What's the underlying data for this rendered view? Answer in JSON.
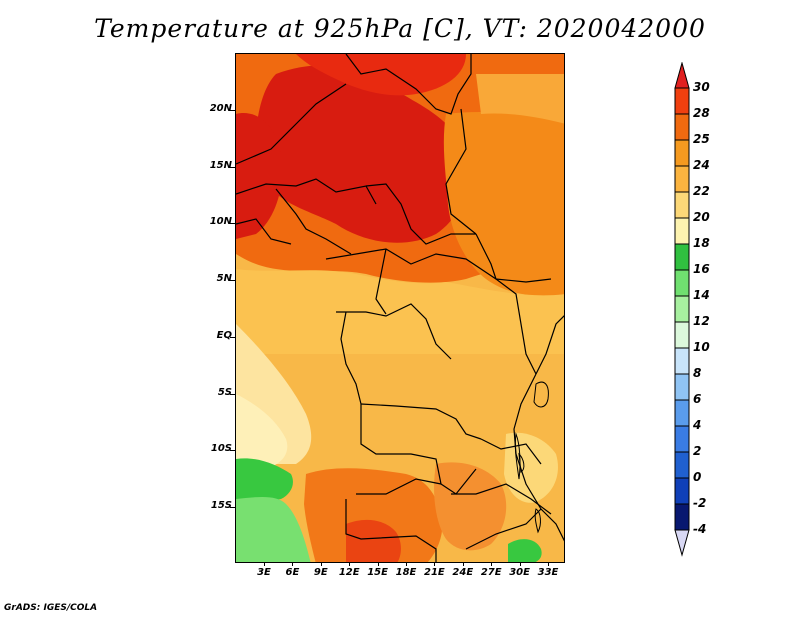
{
  "title": "Temperature at 925hPa [C], VT: 2020042000",
  "credit": "GrADS: IGES/COLA",
  "lat_labels": [
    "20N",
    "15N",
    "10N",
    "5N",
    "EQ",
    "5S",
    "10S",
    "15S"
  ],
  "lat_values": [
    20,
    15,
    10,
    5,
    0,
    -5,
    -10,
    -15
  ],
  "lon_labels": [
    "3E",
    "6E",
    "9E",
    "12E",
    "15E",
    "18E",
    "21E",
    "24E",
    "27E",
    "30E",
    "33E"
  ],
  "lon_values": [
    3,
    6,
    9,
    12,
    15,
    18,
    21,
    24,
    27,
    30,
    33
  ],
  "colorbar": {
    "labels": [
      "30",
      "28",
      "25",
      "24",
      "22",
      "20",
      "18",
      "16",
      "14",
      "12",
      "10",
      "8",
      "6",
      "4",
      "2",
      "0",
      "-2",
      "-4"
    ],
    "colors": [
      "#e02020",
      "#f04010",
      "#f06a10",
      "#f59a20",
      "#fbb440",
      "#fcd878",
      "#fdf3b0",
      "#30c040",
      "#70e070",
      "#a8f0a0",
      "#dcf8dc",
      "#c8e4fa",
      "#90c4f4",
      "#5a9cec",
      "#3a7ce4",
      "#2060d0",
      "#1040b8",
      "#081870",
      "#d8d8f4"
    ]
  }
}
